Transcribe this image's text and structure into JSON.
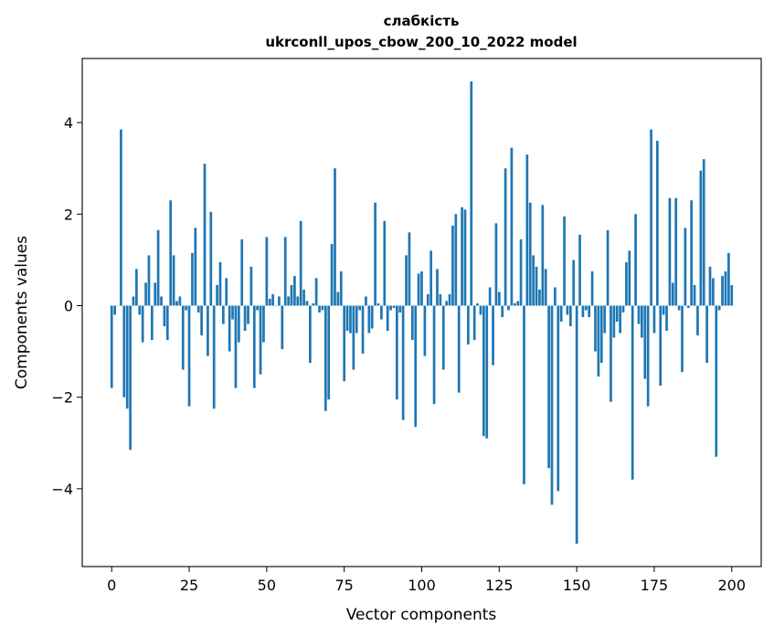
{
  "chart_data": {
    "type": "bar",
    "title_line1": "слабкість",
    "title_line2": "ukrconll_upos_cbow_200_10_2022 model",
    "xlabel": "Vector components",
    "ylabel": "Components values",
    "xlim": [
      -9.5,
      209.5
    ],
    "ylim": [
      -5.7,
      5.4
    ],
    "x_ticks": [
      0,
      25,
      50,
      75,
      100,
      125,
      150,
      175,
      200
    ],
    "x_tick_labels": [
      "0",
      "25",
      "50",
      "75",
      "100",
      "125",
      "150",
      "175",
      "200"
    ],
    "y_ticks": [
      -4,
      -2,
      0,
      2,
      4
    ],
    "y_tick_labels": [
      "−4",
      "−2",
      "0",
      "2",
      "4"
    ],
    "grid": false,
    "bar_color": "#1f77b4",
    "x_start": 0,
    "values": [
      -1.8,
      -0.2,
      0.0,
      3.85,
      -2.0,
      -2.25,
      -3.15,
      0.2,
      0.8,
      -0.2,
      -0.8,
      0.5,
      1.1,
      -0.75,
      0.5,
      1.65,
      0.2,
      -0.45,
      -0.75,
      2.3,
      1.1,
      0.1,
      0.2,
      -1.4,
      -0.1,
      -2.2,
      1.15,
      1.7,
      -0.15,
      -0.65,
      3.1,
      -1.1,
      2.05,
      -2.25,
      0.45,
      0.95,
      -0.4,
      0.6,
      -1.0,
      -0.3,
      -1.8,
      -0.8,
      1.45,
      -0.55,
      -0.4,
      0.85,
      -1.8,
      -0.1,
      -1.5,
      -0.8,
      1.5,
      0.15,
      0.25,
      0.0,
      0.2,
      -0.95,
      1.5,
      0.2,
      0.45,
      0.65,
      0.2,
      1.85,
      0.35,
      0.1,
      -1.25,
      0.05,
      0.6,
      -0.15,
      -0.1,
      -2.3,
      -2.05,
      1.35,
      3.0,
      0.3,
      0.75,
      -1.65,
      -0.55,
      -0.6,
      -1.4,
      -0.6,
      -0.1,
      -1.05,
      0.2,
      -0.6,
      -0.5,
      2.25,
      0.05,
      -0.3,
      1.85,
      -0.55,
      -0.1,
      -0.05,
      -2.05,
      -0.15,
      -2.5,
      1.1,
      1.6,
      -0.75,
      -2.65,
      0.7,
      0.75,
      -1.1,
      0.25,
      1.2,
      -2.15,
      0.8,
      0.25,
      -1.4,
      0.1,
      0.25,
      1.75,
      2.0,
      -1.9,
      2.15,
      2.1,
      -0.85,
      4.9,
      -0.75,
      0.05,
      -0.2,
      -2.85,
      -2.9,
      0.4,
      -1.3,
      1.8,
      0.3,
      -0.25,
      3.0,
      -0.1,
      3.45,
      0.05,
      0.1,
      1.45,
      -3.9,
      3.3,
      2.25,
      1.1,
      0.85,
      0.35,
      2.2,
      0.8,
      -3.55,
      -4.35,
      0.4,
      -4.05,
      -0.35,
      1.95,
      -0.2,
      -0.45,
      1.0,
      -5.2,
      1.55,
      -0.25,
      -0.1,
      -0.25,
      0.75,
      -1.0,
      -1.55,
      -1.25,
      -0.6,
      1.65,
      -2.1,
      -0.7,
      -0.35,
      -0.6,
      -0.15,
      0.95,
      1.2,
      -3.8,
      2.0,
      -0.4,
      -0.7,
      -1.6,
      -2.2,
      3.85,
      -0.6,
      3.6,
      -1.75,
      -0.2,
      -0.55,
      2.35,
      0.5,
      2.35,
      -0.1,
      -1.45,
      1.7,
      -0.05,
      2.3,
      0.45,
      -0.65,
      2.95,
      3.2,
      -1.25,
      0.85,
      0.6,
      -3.3,
      -0.1,
      0.65,
      0.75,
      1.15,
      0.45
    ]
  }
}
